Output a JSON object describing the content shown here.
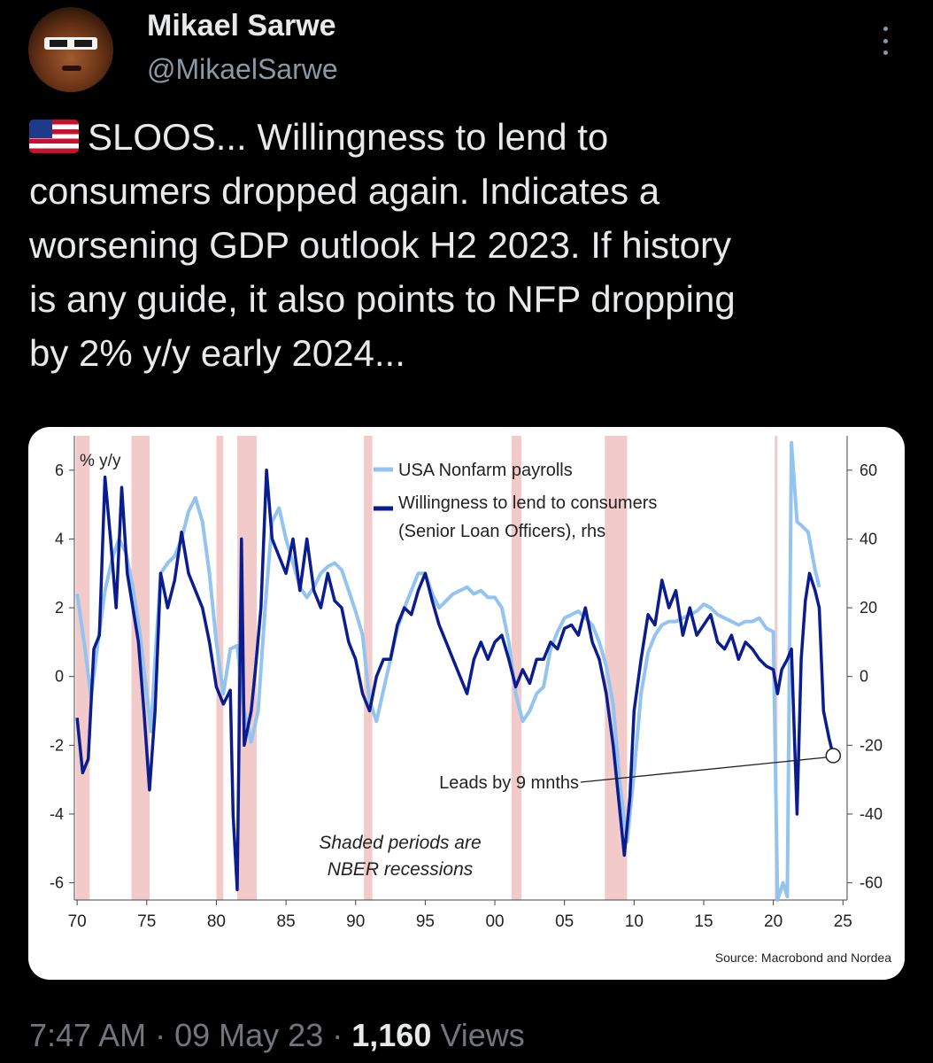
{
  "user": {
    "name": "Mikael Sarwe",
    "handle": "@MikaelSarwe"
  },
  "tweet": {
    "lines": [
      "SLOOS... Willingness to lend to",
      "consumers dropped again. Indicates a",
      "worsening GDP outlook H2 2023. If history",
      "is any guide, it also points to NFP dropping",
      "by 2% y/y early 2024..."
    ]
  },
  "meta": {
    "time": "7:47 AM",
    "sep1": "·",
    "date": "09 May 23",
    "sep2": "·",
    "views_count": "1,160",
    "views_label": "Views"
  },
  "icons": [
    "more-options-icon",
    "us-flag-icon",
    "avatar"
  ],
  "colors": {
    "payrolls": "#93c4f0",
    "lending": "#0b1d8e",
    "recession": "#f2caca",
    "background": "#000000"
  },
  "chart_data": {
    "type": "line",
    "left_axis_label": "% y/y",
    "left_ticks": [
      6,
      4,
      2,
      0,
      -2,
      -4,
      -6
    ],
    "right_ticks": [
      60,
      40,
      20,
      0,
      -20,
      -40,
      -60
    ],
    "x_ticks": [
      "70",
      "75",
      "80",
      "85",
      "90",
      "95",
      "00",
      "05",
      "10",
      "15",
      "20",
      "25"
    ],
    "ylim_left": [
      -6.5,
      7.0
    ],
    "ylim_right": [
      -65,
      70
    ],
    "xlim": [
      1969.8,
      2025.3
    ],
    "legend": {
      "placement": "top-center",
      "entries": [
        "USA Nonfarm payrolls",
        "Willingness to lend to consumers",
        "(Senior Loan Officers), rhs"
      ]
    },
    "annotations": {
      "leads": "Leads by 9 mnths",
      "shaded_1": "Shaded periods are",
      "shaded_2": "NBER recessions",
      "source": "Source: Macrobond and Nordea"
    },
    "recessions": [
      [
        1969.9,
        1970.9
      ],
      [
        1973.9,
        1975.2
      ],
      [
        1980.0,
        1980.5
      ],
      [
        1981.5,
        1982.9
      ],
      [
        1990.6,
        1991.2
      ],
      [
        2001.2,
        2001.9
      ],
      [
        2007.9,
        2009.5
      ],
      [
        2020.1,
        2020.3
      ]
    ],
    "series": [
      {
        "name": "USA Nonfarm payrolls",
        "axis": "left",
        "points": [
          [
            1970.0,
            2.4
          ],
          [
            1970.5,
            1.0
          ],
          [
            1971.0,
            -0.6
          ],
          [
            1971.5,
            1.0
          ],
          [
            1972.0,
            2.5
          ],
          [
            1972.5,
            3.4
          ],
          [
            1973.0,
            4.0
          ],
          [
            1973.5,
            3.6
          ],
          [
            1974.0,
            2.6
          ],
          [
            1974.5,
            1.3
          ],
          [
            1975.0,
            -0.5
          ],
          [
            1975.3,
            -1.6
          ],
          [
            1975.6,
            0.5
          ],
          [
            1976.0,
            3.0
          ],
          [
            1976.5,
            3.3
          ],
          [
            1977.0,
            3.5
          ],
          [
            1977.5,
            4.0
          ],
          [
            1978.0,
            4.8
          ],
          [
            1978.5,
            5.2
          ],
          [
            1979.0,
            4.5
          ],
          [
            1979.5,
            3.0
          ],
          [
            1980.0,
            1.0
          ],
          [
            1980.5,
            -0.5
          ],
          [
            1981.0,
            0.8
          ],
          [
            1981.5,
            0.9
          ],
          [
            1982.0,
            -1.0
          ],
          [
            1982.5,
            -1.9
          ],
          [
            1983.0,
            -1.0
          ],
          [
            1983.5,
            2.0
          ],
          [
            1984.0,
            4.5
          ],
          [
            1984.5,
            4.9
          ],
          [
            1985.0,
            4.0
          ],
          [
            1985.5,
            3.3
          ],
          [
            1986.0,
            2.6
          ],
          [
            1986.5,
            2.3
          ],
          [
            1987.0,
            2.6
          ],
          [
            1987.5,
            3.0
          ],
          [
            1988.0,
            3.2
          ],
          [
            1988.5,
            3.3
          ],
          [
            1989.0,
            3.1
          ],
          [
            1989.5,
            2.5
          ],
          [
            1990.0,
            1.9
          ],
          [
            1990.5,
            1.2
          ],
          [
            1991.0,
            -0.7
          ],
          [
            1991.5,
            -1.3
          ],
          [
            1992.0,
            -0.4
          ],
          [
            1992.5,
            0.5
          ],
          [
            1993.0,
            1.4
          ],
          [
            1993.5,
            2.0
          ],
          [
            1994.0,
            2.5
          ],
          [
            1994.5,
            3.0
          ],
          [
            1995.0,
            3.0
          ],
          [
            1995.5,
            2.4
          ],
          [
            1996.0,
            2.0
          ],
          [
            1996.5,
            2.2
          ],
          [
            1997.0,
            2.4
          ],
          [
            1997.5,
            2.5
          ],
          [
            1998.0,
            2.6
          ],
          [
            1998.5,
            2.4
          ],
          [
            1999.0,
            2.5
          ],
          [
            1999.5,
            2.3
          ],
          [
            2000.0,
            2.3
          ],
          [
            2000.5,
            2.0
          ],
          [
            2001.0,
            1.0
          ],
          [
            2001.5,
            -0.5
          ],
          [
            2002.0,
            -1.3
          ],
          [
            2002.5,
            -1.0
          ],
          [
            2003.0,
            -0.5
          ],
          [
            2003.5,
            -0.3
          ],
          [
            2004.0,
            0.8
          ],
          [
            2004.5,
            1.3
          ],
          [
            2005.0,
            1.7
          ],
          [
            2005.5,
            1.8
          ],
          [
            2006.0,
            1.9
          ],
          [
            2006.5,
            1.7
          ],
          [
            2007.0,
            1.5
          ],
          [
            2007.5,
            1.0
          ],
          [
            2008.0,
            0.3
          ],
          [
            2008.5,
            -0.8
          ],
          [
            2009.0,
            -3.2
          ],
          [
            2009.5,
            -4.8
          ],
          [
            2010.0,
            -2.8
          ],
          [
            2010.5,
            -0.5
          ],
          [
            2011.0,
            0.7
          ],
          [
            2011.5,
            1.2
          ],
          [
            2012.0,
            1.5
          ],
          [
            2012.5,
            1.6
          ],
          [
            2013.0,
            1.6
          ],
          [
            2013.5,
            1.7
          ],
          [
            2014.0,
            1.8
          ],
          [
            2014.5,
            1.9
          ],
          [
            2015.0,
            2.1
          ],
          [
            2015.5,
            2.0
          ],
          [
            2016.0,
            1.8
          ],
          [
            2016.5,
            1.7
          ],
          [
            2017.0,
            1.6
          ],
          [
            2017.5,
            1.5
          ],
          [
            2018.0,
            1.6
          ],
          [
            2018.5,
            1.6
          ],
          [
            2019.0,
            1.7
          ],
          [
            2019.5,
            1.4
          ],
          [
            2020.0,
            1.3
          ],
          [
            2020.3,
            -12.0
          ],
          [
            2020.7,
            -6.0
          ],
          [
            2021.0,
            -6.4
          ],
          [
            2021.3,
            6.8
          ],
          [
            2021.7,
            4.5
          ],
          [
            2022.0,
            4.4
          ],
          [
            2022.5,
            4.2
          ],
          [
            2023.0,
            3.1
          ],
          [
            2023.3,
            2.6
          ]
        ]
      },
      {
        "name": "Willingness to lend to consumers",
        "axis": "right",
        "points": [
          [
            1970.0,
            -12
          ],
          [
            1970.4,
            -28
          ],
          [
            1970.8,
            -24
          ],
          [
            1971.2,
            8
          ],
          [
            1971.6,
            12
          ],
          [
            1972.0,
            58
          ],
          [
            1972.4,
            40
          ],
          [
            1972.8,
            20
          ],
          [
            1973.2,
            55
          ],
          [
            1973.6,
            30
          ],
          [
            1974.0,
            20
          ],
          [
            1974.4,
            10
          ],
          [
            1974.8,
            -10
          ],
          [
            1975.2,
            -33
          ],
          [
            1975.6,
            -10
          ],
          [
            1976.0,
            30
          ],
          [
            1976.5,
            20
          ],
          [
            1977.0,
            28
          ],
          [
            1977.5,
            42
          ],
          [
            1978.0,
            30
          ],
          [
            1978.5,
            25
          ],
          [
            1979.0,
            20
          ],
          [
            1979.5,
            10
          ],
          [
            1980.0,
            -3
          ],
          [
            1980.5,
            -8
          ],
          [
            1981.0,
            -4
          ],
          [
            1981.2,
            -40
          ],
          [
            1981.5,
            -62
          ],
          [
            1981.8,
            40
          ],
          [
            1982.0,
            -20
          ],
          [
            1982.5,
            -10
          ],
          [
            1982.8,
            2
          ],
          [
            1983.2,
            20
          ],
          [
            1983.6,
            60
          ],
          [
            1984.0,
            40
          ],
          [
            1984.5,
            35
          ],
          [
            1985.0,
            30
          ],
          [
            1985.5,
            40
          ],
          [
            1986.0,
            25
          ],
          [
            1986.5,
            40
          ],
          [
            1987.0,
            25
          ],
          [
            1987.5,
            20
          ],
          [
            1988.0,
            30
          ],
          [
            1988.5,
            22
          ],
          [
            1989.0,
            20
          ],
          [
            1989.5,
            10
          ],
          [
            1990.0,
            5
          ],
          [
            1990.5,
            -5
          ],
          [
            1991.0,
            -10
          ],
          [
            1991.5,
            0
          ],
          [
            1992.0,
            5
          ],
          [
            1992.5,
            5
          ],
          [
            1993.0,
            15
          ],
          [
            1993.5,
            20
          ],
          [
            1994.0,
            18
          ],
          [
            1994.5,
            25
          ],
          [
            1995.0,
            30
          ],
          [
            1995.5,
            22
          ],
          [
            1996.0,
            15
          ],
          [
            1996.5,
            10
          ],
          [
            1997.0,
            5
          ],
          [
            1997.5,
            0
          ],
          [
            1998.0,
            -5
          ],
          [
            1998.5,
            5
          ],
          [
            1999.0,
            10
          ],
          [
            1999.5,
            5
          ],
          [
            2000.0,
            10
          ],
          [
            2000.5,
            12
          ],
          [
            2001.0,
            5
          ],
          [
            2001.5,
            -3
          ],
          [
            2002.0,
            2
          ],
          [
            2002.5,
            -2
          ],
          [
            2003.0,
            5
          ],
          [
            2003.5,
            5
          ],
          [
            2004.0,
            10
          ],
          [
            2004.5,
            8
          ],
          [
            2005.0,
            14
          ],
          [
            2005.5,
            15
          ],
          [
            2006.0,
            12
          ],
          [
            2006.5,
            20
          ],
          [
            2007.0,
            10
          ],
          [
            2007.5,
            5
          ],
          [
            2008.0,
            -5
          ],
          [
            2008.5,
            -20
          ],
          [
            2009.0,
            -40
          ],
          [
            2009.3,
            -52
          ],
          [
            2009.7,
            -35
          ],
          [
            2010.0,
            -10
          ],
          [
            2010.5,
            5
          ],
          [
            2011.0,
            18
          ],
          [
            2011.5,
            15
          ],
          [
            2012.0,
            28
          ],
          [
            2012.5,
            20
          ],
          [
            2013.0,
            25
          ],
          [
            2013.5,
            12
          ],
          [
            2014.0,
            20
          ],
          [
            2014.5,
            12
          ],
          [
            2015.0,
            15
          ],
          [
            2015.5,
            18
          ],
          [
            2016.0,
            10
          ],
          [
            2016.5,
            8
          ],
          [
            2017.0,
            12
          ],
          [
            2017.5,
            5
          ],
          [
            2018.0,
            10
          ],
          [
            2018.5,
            8
          ],
          [
            2019.0,
            5
          ],
          [
            2019.5,
            3
          ],
          [
            2020.0,
            2
          ],
          [
            2020.3,
            -5
          ],
          [
            2020.6,
            2
          ],
          [
            2021.0,
            5
          ],
          [
            2021.3,
            8
          ],
          [
            2021.7,
            -40
          ],
          [
            2022.0,
            5
          ],
          [
            2022.3,
            22
          ],
          [
            2022.6,
            30
          ],
          [
            2023.0,
            25
          ],
          [
            2023.3,
            20
          ],
          [
            2023.6,
            -10
          ],
          [
            2024.0,
            -18
          ],
          [
            2024.3,
            -23
          ]
        ]
      }
    ]
  }
}
